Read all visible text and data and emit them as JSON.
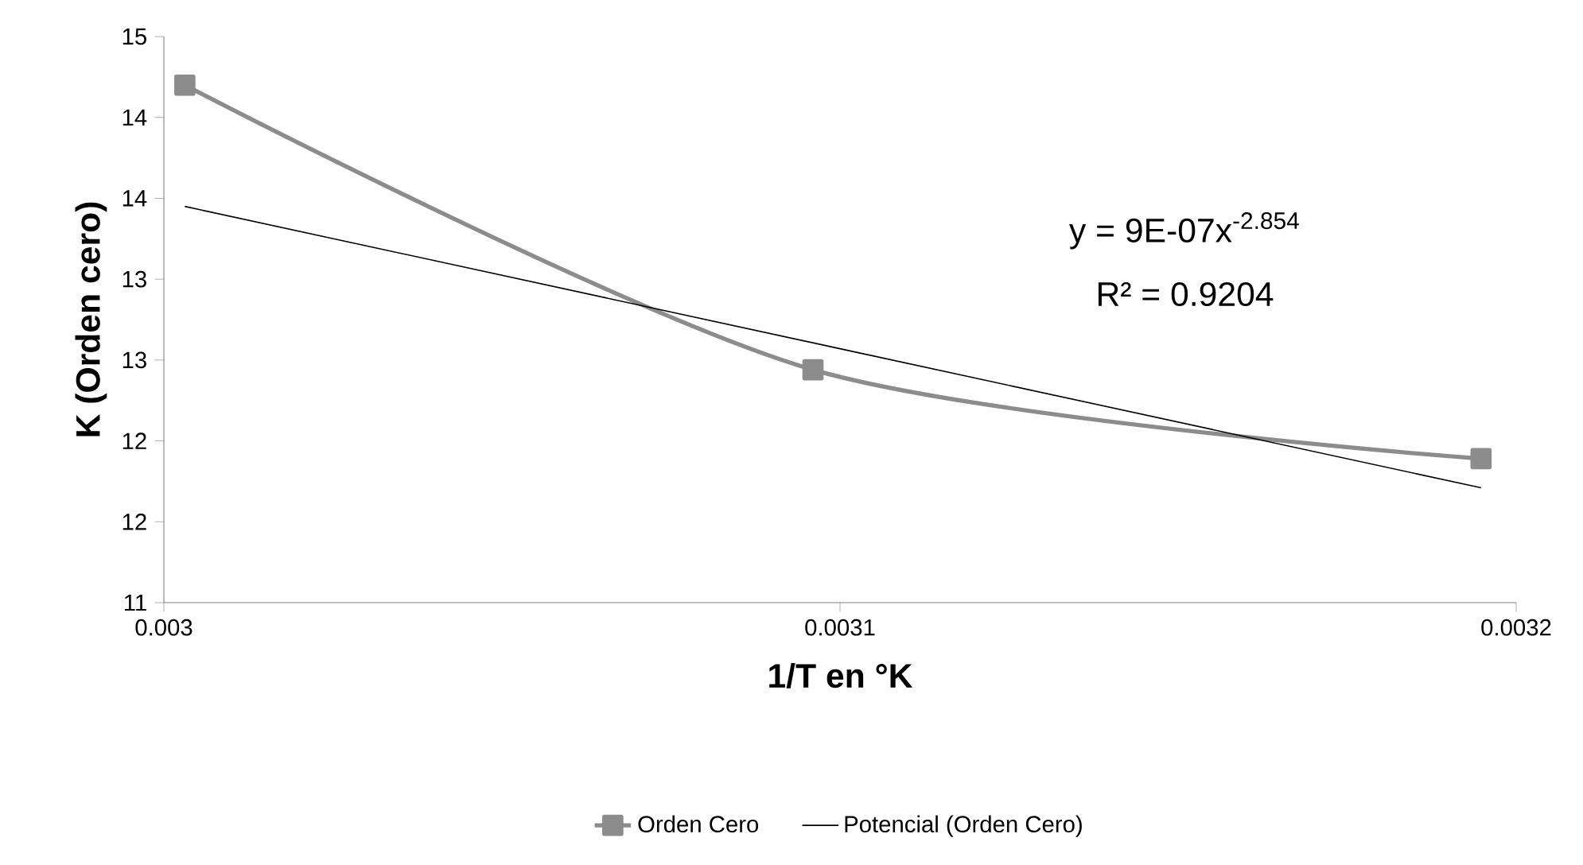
{
  "chart_data": {
    "type": "line",
    "xlabel": "1/T en °K",
    "ylabel": "K (Orden cero)",
    "xlim": [
      0.003,
      0.0032
    ],
    "xticks": [
      0.003,
      0.0031,
      0.0032
    ],
    "ylim": [
      11,
      14.5
    ],
    "yticks": [
      11,
      {
        "value": 11.5,
        "label": "12"
      },
      12,
      {
        "value": 12.5,
        "label": "13"
      },
      13,
      {
        "value": 13.5,
        "label": "14"
      },
      14,
      {
        "value": 14.5,
        "label": "15"
      }
    ],
    "series": [
      {
        "name": "Orden Cero",
        "color": "#8c8c8c",
        "marker": "square",
        "x": [
          0.0030031,
          0.003096,
          0.0031948
        ],
        "values": [
          14.2,
          12.44,
          11.89
        ]
      },
      {
        "name": "Potencial (Orden Cero)",
        "color": "#000000",
        "marker": "none",
        "x": [
          0.0030031,
          0.0031,
          0.0031948
        ],
        "values": [
          13.45,
          12.57,
          11.71
        ]
      }
    ],
    "annotations": [
      "y = 9E-07x$^{-2.854}$",
      "R² = 0.9204"
    ],
    "legend": "bottom",
    "grid": false
  }
}
